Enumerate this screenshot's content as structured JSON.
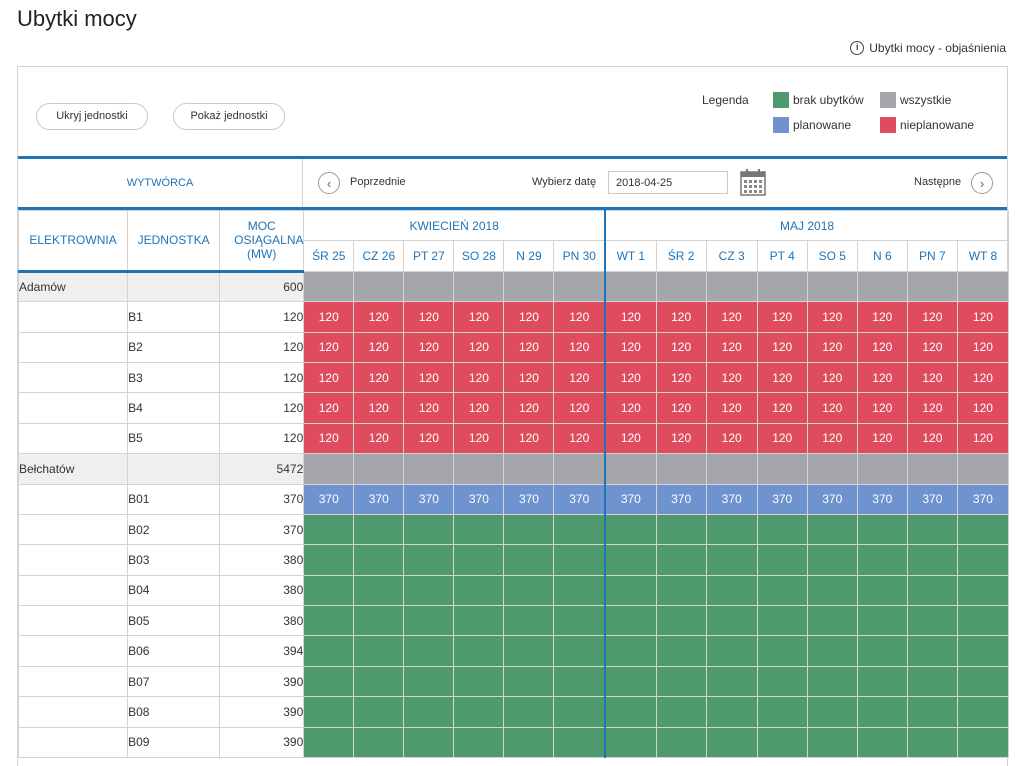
{
  "title": "Ubytki mocy",
  "help_link": "Ubytki mocy - objaśnienia",
  "toolbar": {
    "hide_units": "Ukryj jednostki",
    "show_units": "Pokaż jednostki",
    "legend_label": "Legenda",
    "legend": [
      {
        "label": "brak ubytków",
        "color": "#4f9a6d"
      },
      {
        "label": "wszystkie",
        "color": "#a5a6ab"
      },
      {
        "label": "planowane",
        "color": "#6f93cf"
      },
      {
        "label": "nieplanowane",
        "color": "#df4c5d"
      }
    ]
  },
  "nav": {
    "producer_label": "WYTWÓRCA",
    "prev_label": "Poprzednie",
    "date_label": "Wybierz datę",
    "date_value": "2018-04-25",
    "next_label": "Następne"
  },
  "columns": {
    "plant": "ELEKTROWNIA",
    "unit": "JEDNOSTKA",
    "power": "MOC OSIĄGALNA (MW)"
  },
  "months": [
    {
      "label": "KWIECIEŃ 2018",
      "days": [
        "ŚR 25",
        "CZ 26",
        "PT 27",
        "SO 28",
        "N 29",
        "PN 30"
      ]
    },
    {
      "label": "MAJ 2018",
      "days": [
        "WT 1",
        "ŚR 2",
        "CZ 3",
        "PT 4",
        "SO 5",
        "N 6",
        "PN 7",
        "WT 8"
      ]
    }
  ],
  "colors": {
    "gray": "#a5a6ab",
    "red": "#df4c5d",
    "blue": "#6f93cf",
    "green": "#4f9a6d",
    "accent": "#1f73b7"
  },
  "rows": [
    {
      "plant": "Adamów",
      "unit": "",
      "power": "600",
      "status": "gray",
      "value": ""
    },
    {
      "plant": "",
      "unit": "B1",
      "power": "120",
      "status": "red",
      "value": "120"
    },
    {
      "plant": "",
      "unit": "B2",
      "power": "120",
      "status": "red",
      "value": "120"
    },
    {
      "plant": "",
      "unit": "B3",
      "power": "120",
      "status": "red",
      "value": "120"
    },
    {
      "plant": "",
      "unit": "B4",
      "power": "120",
      "status": "red",
      "value": "120"
    },
    {
      "plant": "",
      "unit": "B5",
      "power": "120",
      "status": "red",
      "value": "120"
    },
    {
      "plant": "Bełchatów",
      "unit": "",
      "power": "5472",
      "status": "gray",
      "value": ""
    },
    {
      "plant": "",
      "unit": "B01",
      "power": "370",
      "status": "blue",
      "value": "370"
    },
    {
      "plant": "",
      "unit": "B02",
      "power": "370",
      "status": "green",
      "value": ""
    },
    {
      "plant": "",
      "unit": "B03",
      "power": "380",
      "status": "green",
      "value": ""
    },
    {
      "plant": "",
      "unit": "B04",
      "power": "380",
      "status": "green",
      "value": ""
    },
    {
      "plant": "",
      "unit": "B05",
      "power": "380",
      "status": "green",
      "value": ""
    },
    {
      "plant": "",
      "unit": "B06",
      "power": "394",
      "status": "green",
      "value": ""
    },
    {
      "plant": "",
      "unit": "B07",
      "power": "390",
      "status": "green",
      "value": ""
    },
    {
      "plant": "",
      "unit": "B08",
      "power": "390",
      "status": "green",
      "value": ""
    },
    {
      "plant": "",
      "unit": "B09",
      "power": "390",
      "status": "green",
      "value": ""
    }
  ]
}
